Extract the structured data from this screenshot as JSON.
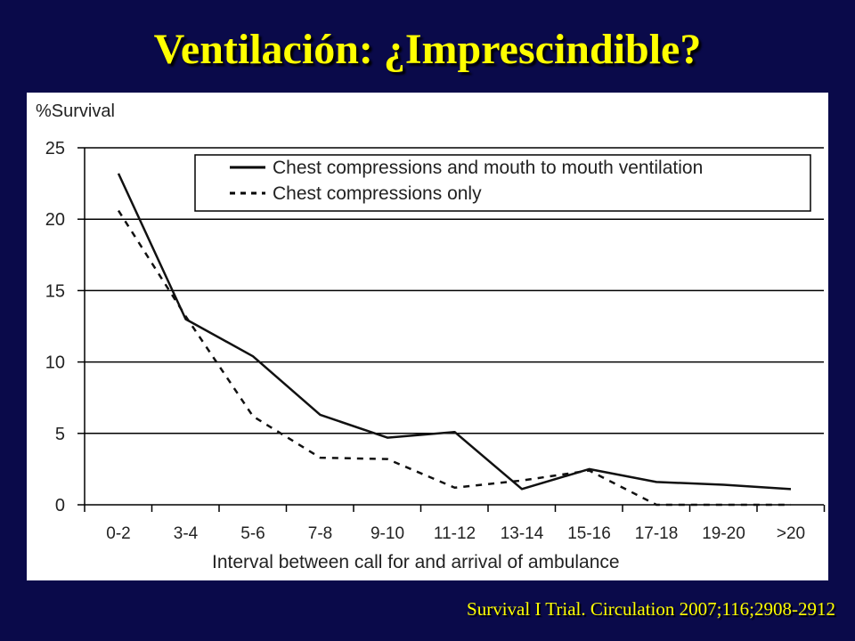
{
  "slide": {
    "title": "Ventilación: ¿Imprescindible?",
    "citation": "Survival I Trial. Circulation 2007;116;2908-2912",
    "colors": {
      "background": "#0a0a4a",
      "title": "#ffff00",
      "citation": "#ffff00"
    }
  },
  "chart_data": {
    "type": "line",
    "ylabel": "%Survival",
    "xlabel": "Interval between call for and arrival of ambulance",
    "categories": [
      "0-2",
      "3-4",
      "5-6",
      "7-8",
      "9-10",
      "11-12",
      "13-14",
      "15-16",
      "17-18",
      "19-20",
      ">20"
    ],
    "yticks": [
      0,
      5,
      10,
      15,
      20,
      25
    ],
    "ylim": [
      0,
      25
    ],
    "grid": "horizontal",
    "legend_position": "top-right",
    "series": [
      {
        "name": "Chest compressions and mouth to mouth ventilation",
        "style": "solid",
        "values": [
          23.2,
          13.0,
          10.4,
          6.3,
          4.7,
          5.1,
          1.1,
          2.5,
          1.6,
          1.4,
          1.1
        ]
      },
      {
        "name": "Chest compressions only",
        "style": "dashed",
        "values": [
          20.6,
          13.2,
          6.2,
          3.3,
          3.2,
          1.2,
          1.7,
          2.4,
          0.0,
          0.0,
          0.0
        ]
      }
    ]
  }
}
